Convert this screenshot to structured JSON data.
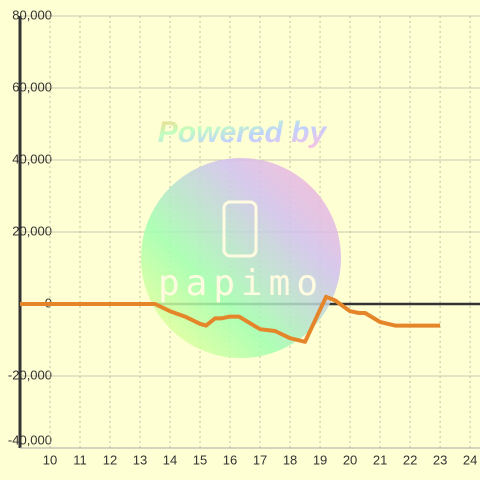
{
  "chart_data": {
    "type": "line",
    "watermark": "Powered by",
    "logo_text": "papimo",
    "x": [
      9,
      13.5,
      14,
      14.5,
      15,
      15.2,
      15.5,
      15.7,
      16,
      16.3,
      16.5,
      17,
      17.5,
      18,
      18.5,
      19.2,
      19.5,
      20,
      20.3,
      20.5,
      21,
      21.5,
      22,
      23
    ],
    "series": [
      {
        "color": "#e5852a",
        "values": [
          0,
          0,
          -2000,
          -3500,
          -5500,
          -6000,
          -4000,
          -4000,
          -3500,
          -3500,
          -4500,
          -7000,
          -7500,
          -9500,
          -10500,
          2000,
          1000,
          -2000,
          -2500,
          -2500,
          -5000,
          -6000,
          -6000,
          -6000
        ]
      }
    ],
    "xlim": [
      9,
      24.33
    ],
    "xticks": [
      10,
      11,
      12,
      13,
      14,
      15,
      16,
      17,
      18,
      19,
      20,
      21,
      22,
      23,
      24
    ],
    "ylim": [
      -40000,
      80000
    ],
    "yticks": [
      {
        "value": -40000,
        "label": "-40,000"
      },
      {
        "value": -20000,
        "label": "-20,000"
      },
      0,
      {
        "value": 20000,
        "label": "20,000"
      },
      {
        "value": 40000,
        "label": "40,000"
      },
      {
        "value": 60000,
        "label": "60,000"
      },
      {
        "value": 80000,
        "label": "80,000"
      }
    ],
    "grid": true
  }
}
